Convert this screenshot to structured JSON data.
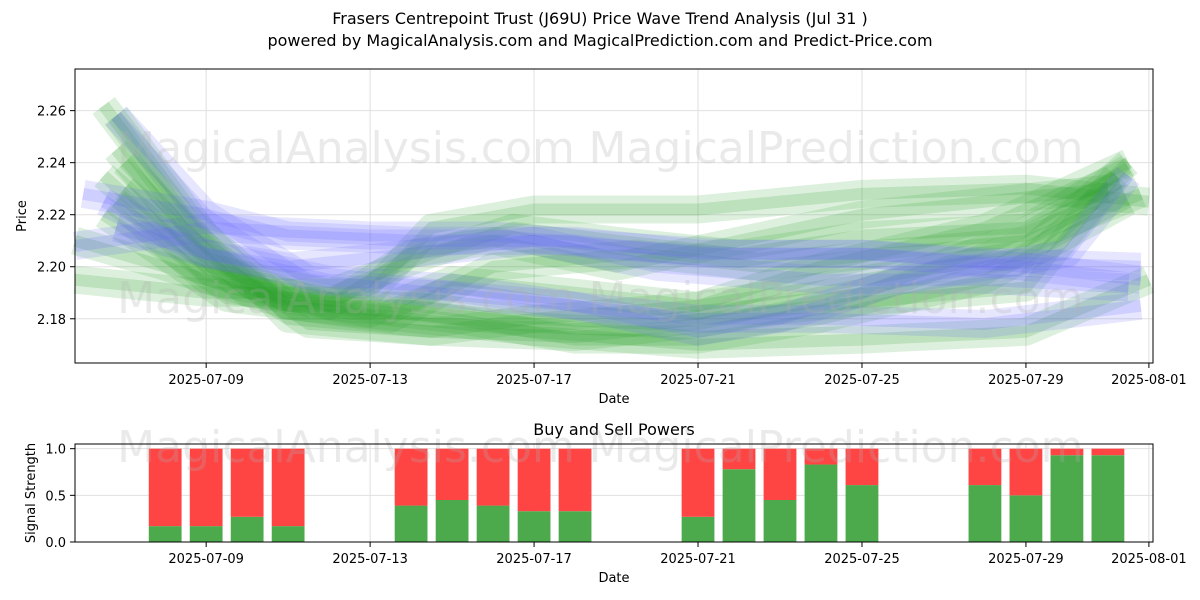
{
  "title_line1": "Frasers Centrepoint Trust (J69U) Price Wave Trend Analysis (Jul 31 )",
  "title_line2": "powered by MagicalAnalysis.com and MagicalPrediction.com and Predict-Price.com",
  "watermarks": [
    "MagicalAnalysis.com",
    "MagicalPrediction.com"
  ],
  "colors": {
    "green": "#2ca02c",
    "blue": "#6666ff",
    "buy": "#4caa4c",
    "sell": "#ff4444"
  },
  "chart_data": [
    {
      "type": "line",
      "title": "",
      "xlabel": "Date",
      "ylabel": "Price",
      "x_ticks": [
        "2025-07-09",
        "2025-07-13",
        "2025-07-17",
        "2025-07-21",
        "2025-07-25",
        "2025-07-29",
        "2025-08-01"
      ],
      "x_tick_days": [
        9,
        13,
        17,
        21,
        25,
        29,
        32
      ],
      "xlim_days": [
        5.8,
        32.1
      ],
      "y_ticks": [
        2.18,
        2.2,
        2.22,
        2.24,
        2.26
      ],
      "ylim": [
        2.163,
        2.276
      ],
      "grid": true,
      "series": [
        {
          "name": "green-1",
          "color": "green",
          "x": [
            6.5,
            8.5,
            11,
            14.5,
            17,
            21,
            25,
            29,
            31.5
          ],
          "y": [
            2.262,
            2.22,
            2.18,
            2.175,
            2.18,
            2.185,
            2.195,
            2.205,
            2.24
          ]
        },
        {
          "name": "green-2",
          "color": "green",
          "x": [
            6.8,
            9,
            11,
            14,
            17,
            20,
            24,
            29,
            31.2
          ],
          "y": [
            2.258,
            2.212,
            2.185,
            2.185,
            2.18,
            2.178,
            2.185,
            2.192,
            2.235
          ]
        },
        {
          "name": "green-3",
          "color": "green",
          "x": [
            6.8,
            9,
            11.5,
            14.5,
            18,
            21,
            25,
            28.5,
            31.3
          ],
          "y": [
            2.245,
            2.205,
            2.178,
            2.175,
            2.173,
            2.178,
            2.19,
            2.21,
            2.232
          ]
        },
        {
          "name": "green-4",
          "color": "green",
          "x": [
            7,
            9.5,
            12,
            15,
            18,
            21,
            24,
            28,
            31.5
          ],
          "y": [
            2.24,
            2.198,
            2.185,
            2.18,
            2.172,
            2.172,
            2.18,
            2.195,
            2.225
          ]
        },
        {
          "name": "green-5",
          "color": "green",
          "x": [
            5.8,
            8,
            11,
            14,
            17,
            21,
            25,
            29,
            32
          ],
          "y": [
            2.21,
            2.2,
            2.185,
            2.18,
            2.175,
            2.17,
            2.172,
            2.175,
            2.195
          ]
        },
        {
          "name": "green-6",
          "color": "green",
          "x": [
            5.8,
            9,
            13,
            14.5,
            17,
            21,
            25,
            29,
            32
          ],
          "y": [
            2.195,
            2.19,
            2.19,
            2.215,
            2.222,
            2.222,
            2.228,
            2.23,
            2.225
          ]
        },
        {
          "name": "green-7",
          "color": "green",
          "x": [
            6.5,
            9,
            12,
            14.5,
            16.5,
            19,
            22,
            25,
            29,
            31.5
          ],
          "y": [
            2.235,
            2.2,
            2.19,
            2.205,
            2.215,
            2.21,
            2.205,
            2.212,
            2.215,
            2.238
          ]
        },
        {
          "name": "green-8",
          "color": "green",
          "x": [
            6.8,
            9,
            12,
            14,
            16,
            19,
            22,
            25,
            28,
            31
          ],
          "y": [
            2.225,
            2.195,
            2.185,
            2.205,
            2.21,
            2.2,
            2.21,
            2.22,
            2.225,
            2.23
          ]
        },
        {
          "name": "green-9",
          "color": "green",
          "x": [
            7,
            10,
            13,
            15,
            18,
            21,
            24,
            28,
            31.5
          ],
          "y": [
            2.23,
            2.19,
            2.182,
            2.195,
            2.19,
            2.185,
            2.2,
            2.215,
            2.24
          ]
        },
        {
          "name": "green-10",
          "color": "green",
          "x": [
            6.5,
            9.5,
            13.5,
            16,
            19.5,
            22.5,
            25.5,
            29,
            31.8
          ],
          "y": [
            2.22,
            2.188,
            2.18,
            2.2,
            2.205,
            2.2,
            2.205,
            2.21,
            2.228
          ]
        },
        {
          "name": "blue-1",
          "color": "blue",
          "x": [
            6,
            9,
            11,
            14,
            18,
            21,
            25,
            29,
            31.8
          ],
          "y": [
            2.228,
            2.22,
            2.212,
            2.21,
            2.21,
            2.205,
            2.205,
            2.2,
            2.195
          ]
        },
        {
          "name": "blue-2",
          "color": "blue",
          "x": [
            6.8,
            9,
            11.5,
            14.5,
            18,
            21,
            23,
            26,
            30,
            31.5
          ],
          "y": [
            2.258,
            2.22,
            2.195,
            2.19,
            2.185,
            2.175,
            2.18,
            2.195,
            2.205,
            2.235
          ]
        },
        {
          "name": "blue-3",
          "color": "blue",
          "x": [
            5.8,
            9,
            13,
            16,
            19,
            22,
            25,
            28,
            31.8
          ],
          "y": [
            2.208,
            2.215,
            2.212,
            2.212,
            2.208,
            2.205,
            2.205,
            2.202,
            2.2
          ]
        },
        {
          "name": "blue-4",
          "color": "blue",
          "x": [
            6.5,
            9,
            12,
            15,
            18,
            21,
            24,
            28,
            31.8
          ],
          "y": [
            2.225,
            2.205,
            2.195,
            2.192,
            2.185,
            2.18,
            2.18,
            2.178,
            2.185
          ]
        },
        {
          "name": "blue-5",
          "color": "blue",
          "x": [
            6.8,
            9,
            11,
            14,
            17,
            20,
            24,
            28,
            31.5
          ],
          "y": [
            2.215,
            2.205,
            2.2,
            2.205,
            2.21,
            2.2,
            2.195,
            2.195,
            2.192
          ]
        }
      ]
    },
    {
      "type": "bar",
      "title": "Buy and Sell Powers",
      "xlabel": "Date",
      "ylabel": "Signal Strength",
      "x_ticks": [
        "2025-07-09",
        "2025-07-13",
        "2025-07-17",
        "2025-07-21",
        "2025-07-25",
        "2025-07-29",
        "2025-08-01"
      ],
      "x_tick_days": [
        9,
        13,
        17,
        21,
        25,
        29,
        32
      ],
      "xlim_days": [
        5.8,
        32.1
      ],
      "y_ticks": [
        "0.0",
        "0.5",
        "1.0"
      ],
      "ylim": [
        0,
        1.05
      ],
      "days": [
        8,
        9,
        10,
        11,
        14,
        15,
        16,
        17,
        18,
        21,
        22,
        23,
        24,
        25,
        28,
        29,
        30,
        31
      ],
      "series": [
        {
          "name": "Buy",
          "color": "buy",
          "values": [
            0.17,
            0.17,
            0.27,
            0.17,
            0.39,
            0.45,
            0.39,
            0.33,
            0.33,
            0.27,
            0.78,
            0.45,
            0.83,
            0.61,
            0.61,
            0.5,
            0.93,
            0.93
          ]
        },
        {
          "name": "Sell",
          "color": "sell",
          "values": [
            0.83,
            0.83,
            0.73,
            0.83,
            0.61,
            0.55,
            0.61,
            0.67,
            0.67,
            0.73,
            0.22,
            0.55,
            0.17,
            0.39,
            0.39,
            0.5,
            0.07,
            0.07
          ]
        }
      ]
    }
  ]
}
